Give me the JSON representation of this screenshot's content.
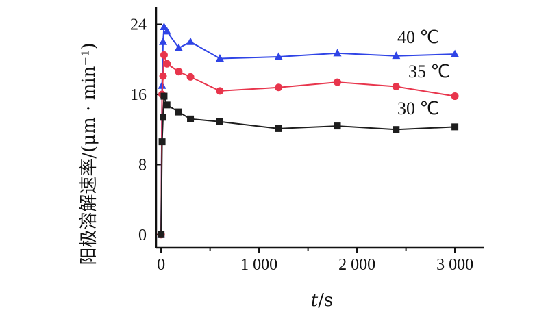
{
  "chart_data": {
    "type": "line",
    "xlabel": "t/s",
    "xlabel_var": "t",
    "xlabel_unit": "/s",
    "ylabel": "阳极溶解速率/(μm · min⁻¹)",
    "xlim": [
      -50,
      3300
    ],
    "ylim": [
      -1.5,
      26
    ],
    "x_ticks": [
      0,
      1000,
      2000,
      3000
    ],
    "x_tick_labels": [
      "0",
      "1 000",
      "2 000",
      "3 000"
    ],
    "y_ticks": [
      0,
      8,
      16,
      24
    ],
    "y_tick_labels": [
      "0",
      "8",
      "16",
      "24"
    ],
    "grid": false,
    "series": [
      {
        "name": "40 ℃",
        "color": "#2f44e6",
        "marker": "triangle",
        "x": [
          0,
          10,
          20,
          30,
          60,
          180,
          300,
          600,
          1200,
          1800,
          2400,
          3000
        ],
        "y": [
          0,
          17,
          22,
          23.7,
          23.2,
          21.3,
          22,
          20.1,
          20.3,
          20.7,
          20.4,
          20.6
        ]
      },
      {
        "name": "35 ℃",
        "color": "#e8354c",
        "marker": "circle",
        "x": [
          0,
          10,
          20,
          30,
          60,
          180,
          300,
          600,
          1200,
          1800,
          2400,
          3000
        ],
        "y": [
          0,
          16,
          18.1,
          20.5,
          19.5,
          18.6,
          18,
          16.4,
          16.8,
          17.4,
          16.9,
          15.8
        ]
      },
      {
        "name": "30 ℃",
        "color": "#1e1e1e",
        "marker": "square",
        "x": [
          0,
          10,
          20,
          30,
          60,
          180,
          300,
          600,
          1200,
          1800,
          2400,
          3000
        ],
        "y": [
          0,
          10.6,
          13.4,
          15.8,
          14.8,
          14,
          13.2,
          12.9,
          12.1,
          12.4,
          12,
          12.3
        ]
      }
    ]
  }
}
